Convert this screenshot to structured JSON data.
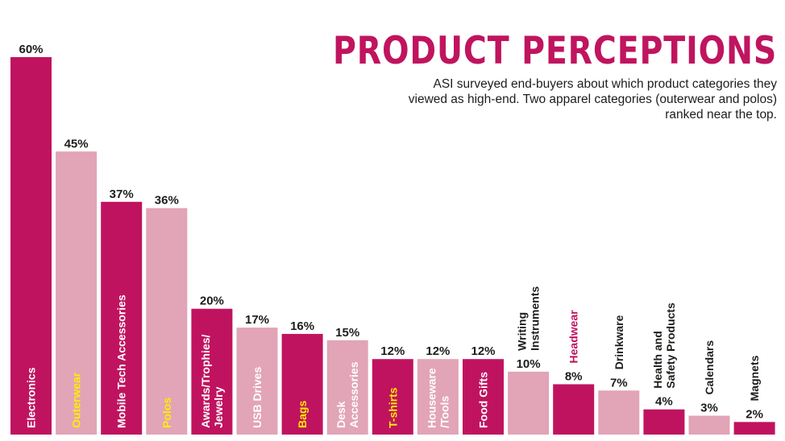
{
  "header": {
    "title": "PRODUCT PERCEPTIONS",
    "subtitle": "ASI surveyed end-buyers about which product categories they viewed as high-end. Two apparel categories (outerwear and polos) ranked near the top."
  },
  "colors": {
    "dark": "#c0135f",
    "light": "#e2a4b7",
    "label_white": "#ffffff",
    "label_yellow": "#ffec00",
    "label_dark": "#1d1d1b",
    "label_accent": "#c0135f"
  },
  "chart_data": {
    "type": "bar",
    "title": "PRODUCT PERCEPTIONS",
    "categories": [
      "Electronics",
      "Outerwear",
      "Mobile Tech Accessories",
      "Polos",
      "Awards/Trophies/ Jewelry",
      "USB Drives",
      "Bags",
      "Desk Accessories",
      "T-shirts",
      "Houseware /Tools",
      "Food Gifts",
      "Writing Instruments",
      "Headwear",
      "Drinkware",
      "Health and Safety Products",
      "Calendars",
      "Magnets"
    ],
    "values": [
      60,
      45,
      37,
      36,
      20,
      17,
      16,
      15,
      12,
      12,
      12,
      10,
      8,
      7,
      4,
      3,
      2
    ],
    "value_labels": [
      "60%",
      "45%",
      "37%",
      "36%",
      "20%",
      "17%",
      "16%",
      "15%",
      "12%",
      "12%",
      "12%",
      "10%",
      "8%",
      "7%",
      "4%",
      "3%",
      "2%"
    ],
    "label_lines": [
      [
        "Electronics"
      ],
      [
        "Outerwear"
      ],
      [
        "Mobile Tech Accessories"
      ],
      [
        "Polos"
      ],
      [
        "Awards/Trophies/",
        "Jewelry"
      ],
      [
        "USB Drives"
      ],
      [
        "Bags"
      ],
      [
        "Desk",
        "Accessories"
      ],
      [
        "T-shirts"
      ],
      [
        "Houseware",
        "/Tools"
      ],
      [
        "Food Gifts"
      ],
      [
        "Writing",
        "Instruments"
      ],
      [
        "Headwear"
      ],
      [
        "Drinkware"
      ],
      [
        "Health and",
        "Safety Products"
      ],
      [
        "Calendars"
      ],
      [
        "Magnets"
      ]
    ],
    "bar_shade": [
      "dark",
      "light",
      "dark",
      "light",
      "dark",
      "light",
      "dark",
      "light",
      "dark",
      "light",
      "dark",
      "light",
      "dark",
      "light",
      "dark",
      "light",
      "dark"
    ],
    "label_color": [
      "white",
      "yellow",
      "white",
      "yellow",
      "white",
      "white",
      "yellow",
      "white",
      "yellow",
      "white",
      "white",
      "dark",
      "accent",
      "dark",
      "dark",
      "dark",
      "dark"
    ],
    "label_placement": [
      "inside",
      "inside",
      "inside",
      "inside",
      "inside",
      "inside",
      "inside",
      "inside",
      "inside",
      "inside",
      "inside",
      "above",
      "above",
      "above",
      "above",
      "above",
      "above"
    ],
    "ylim": [
      0,
      60
    ],
    "xlabel": "",
    "ylabel": "",
    "grid": false,
    "legend": "none"
  }
}
